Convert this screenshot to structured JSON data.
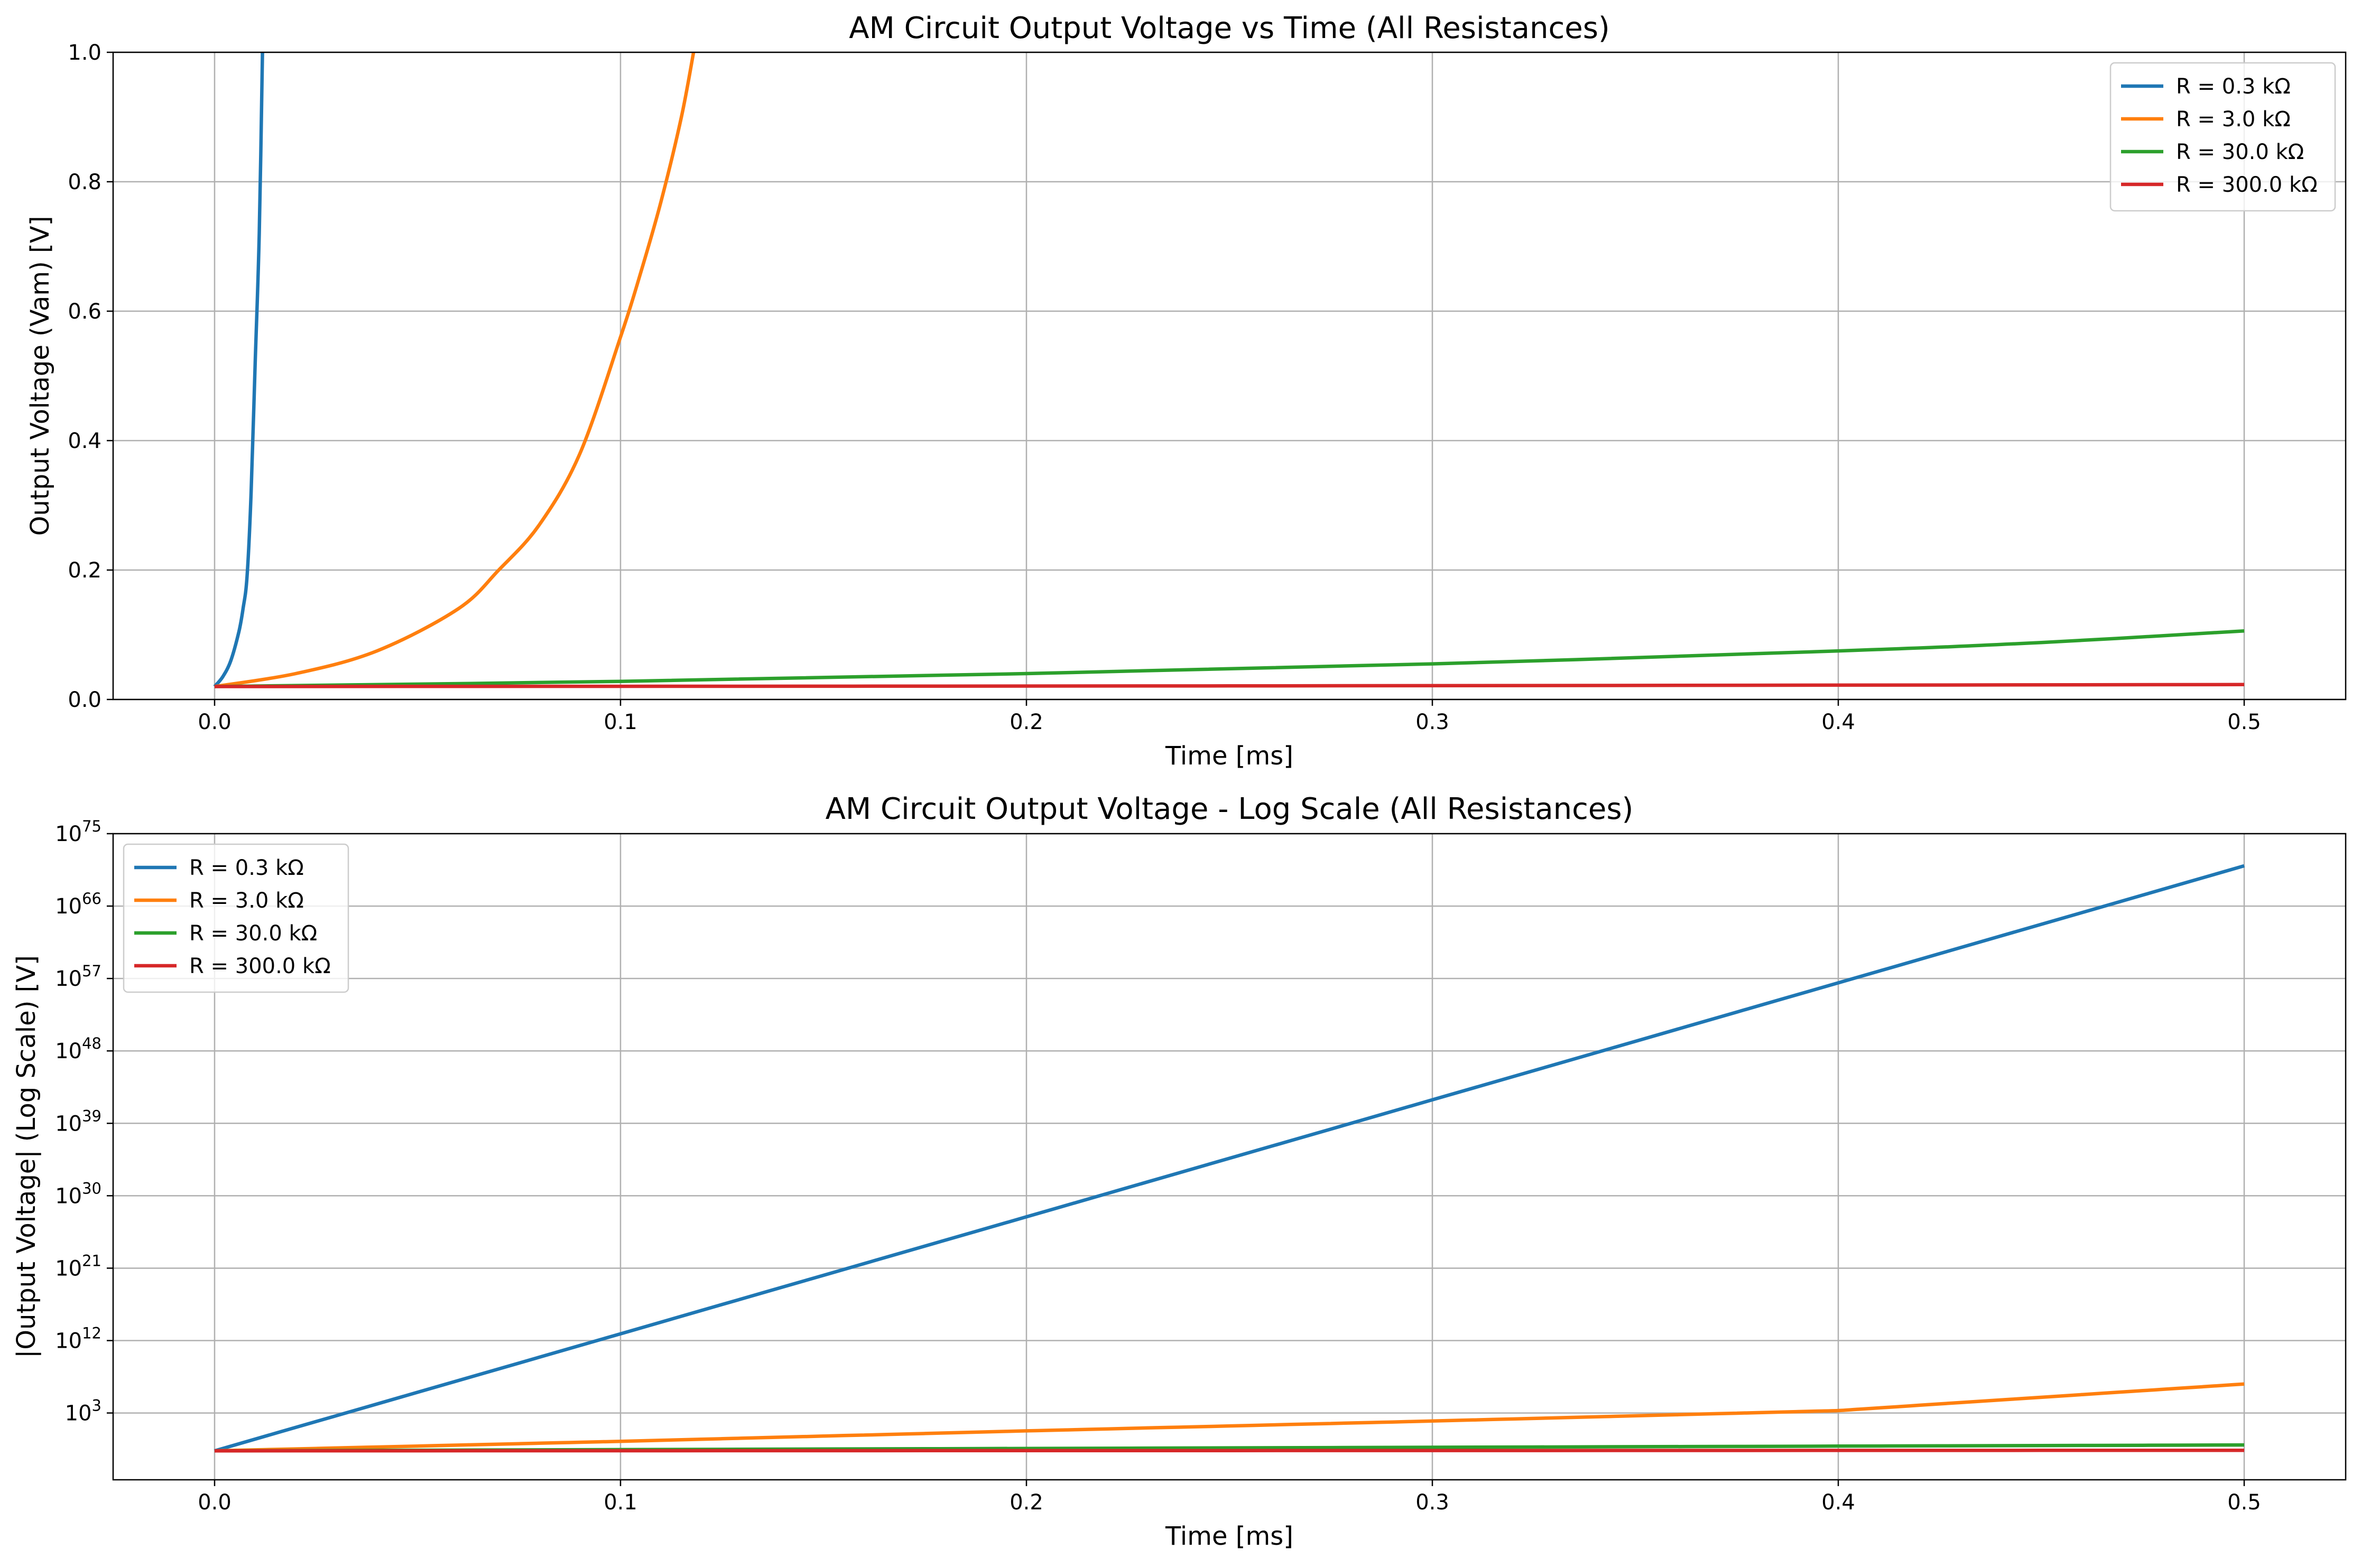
{
  "chart_data": [
    {
      "type": "line",
      "title": "AM Circuit Output Voltage vs Time (All Resistances)",
      "xlabel": "Time [ms]",
      "ylabel": "Output Voltage (Vam) [V]",
      "xlim": [
        -0.025,
        0.525
      ],
      "ylim": [
        0,
        1.0
      ],
      "xticks": [
        "0.0",
        "0.1",
        "0.2",
        "0.3",
        "0.4",
        "0.5"
      ],
      "yticks": [
        "0.0",
        "0.2",
        "0.4",
        "0.6",
        "0.8",
        "1.0"
      ],
      "grid": true,
      "legend_position": "top-right",
      "series": [
        {
          "name": "R = 0.3 kΩ",
          "color": "#1f77b4",
          "x": [
            0,
            0.002,
            0.004,
            0.006,
            0.007,
            0.008,
            0.009,
            0.01,
            0.011,
            0.0118
          ],
          "y": [
            0.02,
            0.035,
            0.06,
            0.105,
            0.14,
            0.19,
            0.32,
            0.52,
            0.72,
            1.0
          ]
        },
        {
          "name": "R = 3.0 kΩ",
          "color": "#ff7f0e",
          "x": [
            0,
            0.02,
            0.04,
            0.06,
            0.07,
            0.08,
            0.09,
            0.1,
            0.105,
            0.11,
            0.115,
            0.118
          ],
          "y": [
            0.02,
            0.04,
            0.075,
            0.14,
            0.2,
            0.27,
            0.38,
            0.56,
            0.66,
            0.77,
            0.9,
            1.0
          ]
        },
        {
          "name": "R = 30.0 kΩ",
          "color": "#2ca02c",
          "x": [
            0,
            0.1,
            0.2,
            0.3,
            0.4,
            0.45,
            0.5
          ],
          "y": [
            0.02,
            0.028,
            0.04,
            0.055,
            0.075,
            0.088,
            0.106
          ]
        },
        {
          "name": "R = 300.0 kΩ",
          "color": "#d62728",
          "x": [
            0,
            0.25,
            0.5
          ],
          "y": [
            0.02,
            0.021,
            0.023
          ]
        }
      ]
    },
    {
      "type": "line",
      "title": "AM Circuit Output Voltage - Log Scale (All Resistances)",
      "xlabel": "Time [ms]",
      "ylabel": "|Output Voltage| (Log Scale) [V]",
      "yscale": "log",
      "xlim": [
        -0.025,
        0.525
      ],
      "ylim_log10": [
        -5.3,
        75
      ],
      "xticks": [
        "0.0",
        "0.1",
        "0.2",
        "0.3",
        "0.4",
        "0.5"
      ],
      "yticks": [
        {
          "base": "10",
          "exp": "3"
        },
        {
          "base": "10",
          "exp": "12"
        },
        {
          "base": "10",
          "exp": "21"
        },
        {
          "base": "10",
          "exp": "30"
        },
        {
          "base": "10",
          "exp": "39"
        },
        {
          "base": "10",
          "exp": "48"
        },
        {
          "base": "10",
          "exp": "57"
        },
        {
          "base": "10",
          "exp": "66"
        },
        {
          "base": "10",
          "exp": "75"
        }
      ],
      "grid": true,
      "legend_position": "top-left",
      "series": [
        {
          "name": "R = 0.3 kΩ",
          "color": "#1f77b4",
          "x": [
            0,
            0.5
          ],
          "y": [
            0.02,
            1e+71
          ]
        },
        {
          "name": "R = 3.0 kΩ",
          "color": "#ff7f0e",
          "x": [
            0,
            0.1,
            0.2,
            0.3,
            0.4,
            0.5
          ],
          "y": [
            0.02,
            0.3,
            6,
            100,
            2000,
            4000000.0
          ]
        },
        {
          "name": "R = 30.0 kΩ",
          "color": "#2ca02c",
          "x": [
            0,
            0.5
          ],
          "y": [
            0.02,
            0.106
          ]
        },
        {
          "name": "R = 300.0 kΩ",
          "color": "#d62728",
          "x": [
            0,
            0.5
          ],
          "y": [
            0.02,
            0.023
          ]
        }
      ]
    }
  ]
}
